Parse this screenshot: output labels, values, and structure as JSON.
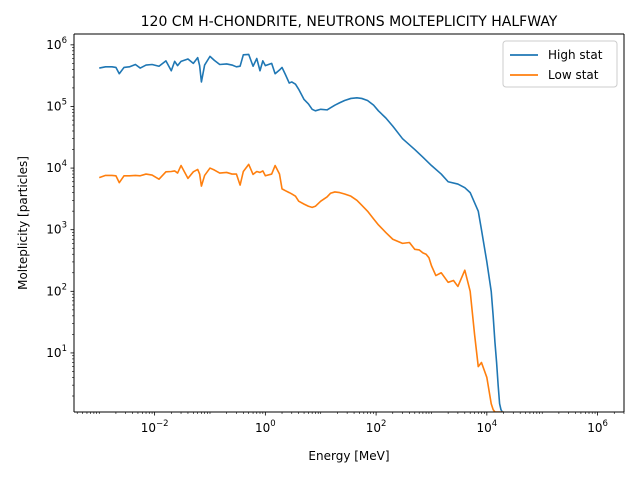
{
  "chart_data": {
    "type": "line",
    "title": "120 CM H-CHONDRITE, NEUTRONS MOLTEPLICITY HALFWAY",
    "xlabel": "Energy [MeV]",
    "ylabel": "Molteplicity [particles]",
    "xscale": "log",
    "yscale": "log",
    "xlim": [
      0.00035,
      3000000
    ],
    "ylim": [
      1.1,
      1500000
    ],
    "xticks": [
      {
        "value": 0.01,
        "base": "10",
        "exp": "−2"
      },
      {
        "value": 1,
        "base": "10",
        "exp": "0"
      },
      {
        "value": 100,
        "base": "10",
        "exp": "2"
      },
      {
        "value": 10000,
        "base": "10",
        "exp": "4"
      },
      {
        "value": 1000000,
        "base": "10",
        "exp": "6"
      }
    ],
    "yticks": [
      {
        "value": 10,
        "base": "10",
        "exp": "1"
      },
      {
        "value": 100,
        "base": "10",
        "exp": "2"
      },
      {
        "value": 1000,
        "base": "10",
        "exp": "3"
      },
      {
        "value": 10000,
        "base": "10",
        "exp": "4"
      },
      {
        "value": 100000,
        "base": "10",
        "exp": "5"
      },
      {
        "value": 1000000,
        "base": "10",
        "exp": "6"
      }
    ],
    "grid": false,
    "legend_position": "top-right",
    "series": [
      {
        "name": "High stat",
        "color": "#1f77b4",
        "x": [
          0.001,
          0.0013,
          0.0017,
          0.002,
          0.0023,
          0.0028,
          0.0035,
          0.0045,
          0.0055,
          0.007,
          0.009,
          0.012,
          0.016,
          0.02,
          0.023,
          0.026,
          0.03,
          0.04,
          0.05,
          0.06,
          0.065,
          0.07,
          0.08,
          0.1,
          0.12,
          0.15,
          0.2,
          0.25,
          0.3,
          0.35,
          0.4,
          0.5,
          0.6,
          0.7,
          0.8,
          0.9,
          1.0,
          1.3,
          1.5,
          1.8,
          2.0,
          2.3,
          2.7,
          3.0,
          3.5,
          4,
          5,
          6,
          7,
          8,
          10,
          13,
          15,
          18,
          22,
          27,
          35,
          45,
          55,
          70,
          90,
          110,
          150,
          200,
          300,
          500,
          700,
          1000,
          1500,
          2000,
          3000,
          4000,
          5000,
          7000,
          8000,
          10000,
          12000,
          13000,
          14000,
          15000,
          16000,
          17000,
          18000,
          19000,
          20000
        ],
        "y": [
          420000,
          440000,
          440000,
          430000,
          340000,
          430000,
          440000,
          480000,
          420000,
          470000,
          480000,
          450000,
          550000,
          380000,
          540000,
          460000,
          540000,
          590000,
          500000,
          620000,
          460000,
          250000,
          470000,
          650000,
          560000,
          480000,
          490000,
          470000,
          440000,
          450000,
          690000,
          700000,
          450000,
          600000,
          380000,
          550000,
          460000,
          500000,
          340000,
          390000,
          430000,
          330000,
          240000,
          250000,
          230000,
          190000,
          130000,
          110000,
          90000,
          85000,
          90000,
          88000,
          95000,
          105000,
          115000,
          125000,
          135000,
          138000,
          135000,
          125000,
          105000,
          85000,
          65000,
          48000,
          30000,
          20000,
          15000,
          11000,
          8000,
          6000,
          5500,
          4800,
          4000,
          2000,
          1000,
          300,
          100,
          40,
          15,
          7,
          3,
          1.5,
          1.2,
          1.1,
          1.1
        ]
      },
      {
        "name": "Low stat",
        "color": "#ff7f0e",
        "x": [
          0.001,
          0.0013,
          0.0017,
          0.002,
          0.0023,
          0.0028,
          0.0035,
          0.0045,
          0.0055,
          0.007,
          0.009,
          0.012,
          0.016,
          0.02,
          0.023,
          0.026,
          0.03,
          0.04,
          0.05,
          0.06,
          0.065,
          0.07,
          0.08,
          0.1,
          0.12,
          0.15,
          0.2,
          0.25,
          0.3,
          0.35,
          0.4,
          0.5,
          0.6,
          0.7,
          0.8,
          0.9,
          1.0,
          1.3,
          1.5,
          1.8,
          2.0,
          2.3,
          2.7,
          3.0,
          3.5,
          4,
          5,
          6,
          7,
          8,
          10,
          13,
          15,
          18,
          22,
          27,
          35,
          45,
          55,
          70,
          90,
          110,
          150,
          200,
          300,
          400,
          500,
          600,
          700,
          800,
          900,
          1000,
          1200,
          1500,
          2000,
          2500,
          3000,
          4000,
          5000,
          6000,
          7000,
          8000,
          10000,
          12000,
          13000,
          14000,
          15000,
          16000,
          17000,
          18000,
          19000,
          20000
        ],
        "y": [
          7000,
          7600,
          7600,
          7500,
          5800,
          7500,
          7500,
          7600,
          7500,
          8000,
          7700,
          6600,
          8700,
          8800,
          9000,
          8300,
          11000,
          6800,
          8700,
          9500,
          8000,
          5100,
          7600,
          10000,
          9300,
          8300,
          8500,
          8000,
          8000,
          5300,
          8800,
          11500,
          7900,
          8800,
          8500,
          9000,
          7500,
          8000,
          11000,
          8000,
          4600,
          4300,
          4000,
          3800,
          3500,
          2900,
          2600,
          2400,
          2300,
          2400,
          2900,
          3400,
          3900,
          4100,
          4000,
          3800,
          3500,
          3000,
          2500,
          2000,
          1500,
          1200,
          900,
          700,
          600,
          620,
          480,
          470,
          420,
          400,
          350,
          260,
          180,
          200,
          140,
          150,
          120,
          220,
          100,
          20,
          6,
          7,
          4,
          1.5,
          1.2,
          1.1,
          1.1,
          1.1,
          1.1,
          1.1,
          1.1,
          1.1
        ]
      }
    ]
  }
}
